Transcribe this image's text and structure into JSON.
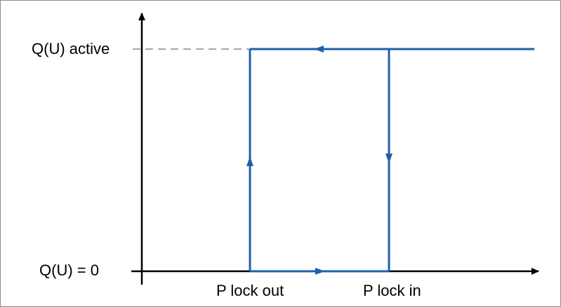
{
  "diagram": {
    "y_labels": {
      "top": "Q(U) active",
      "bottom": "Q(U) = 0"
    },
    "x_labels": {
      "lock_out": "P lock out",
      "lock_in": "P lock in"
    },
    "colors": {
      "path": "#1f5fae",
      "axis": "#000000",
      "dashed_guide": "#a6a6a6",
      "border": "#8c8c8c"
    },
    "description_free": true
  }
}
